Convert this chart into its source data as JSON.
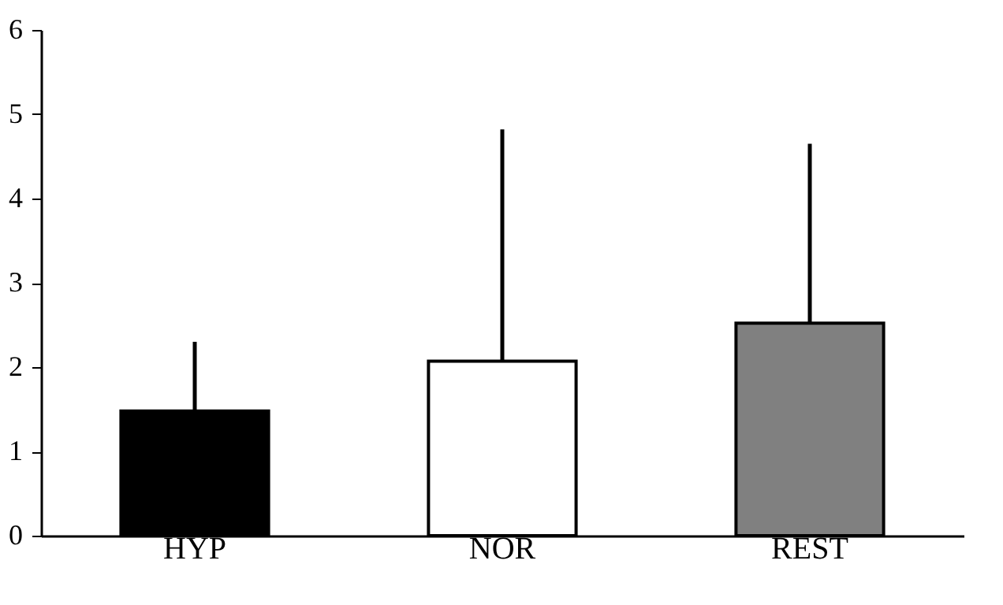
{
  "chart_data": {
    "type": "bar",
    "categories": [
      "HYP",
      "NOR",
      "REST"
    ],
    "values": [
      1.48,
      2.07,
      2.52
    ],
    "colors": [
      "#000000",
      "#ffffff",
      "#808080"
    ],
    "errors": [
      [
        1.48,
        2.3
      ],
      [
        2.07,
        4.82
      ],
      [
        2.52,
        4.65
      ]
    ],
    "ylim": [
      0,
      6
    ],
    "yticks": [
      0,
      1,
      2,
      3,
      4,
      5,
      6
    ],
    "grid": false
  }
}
